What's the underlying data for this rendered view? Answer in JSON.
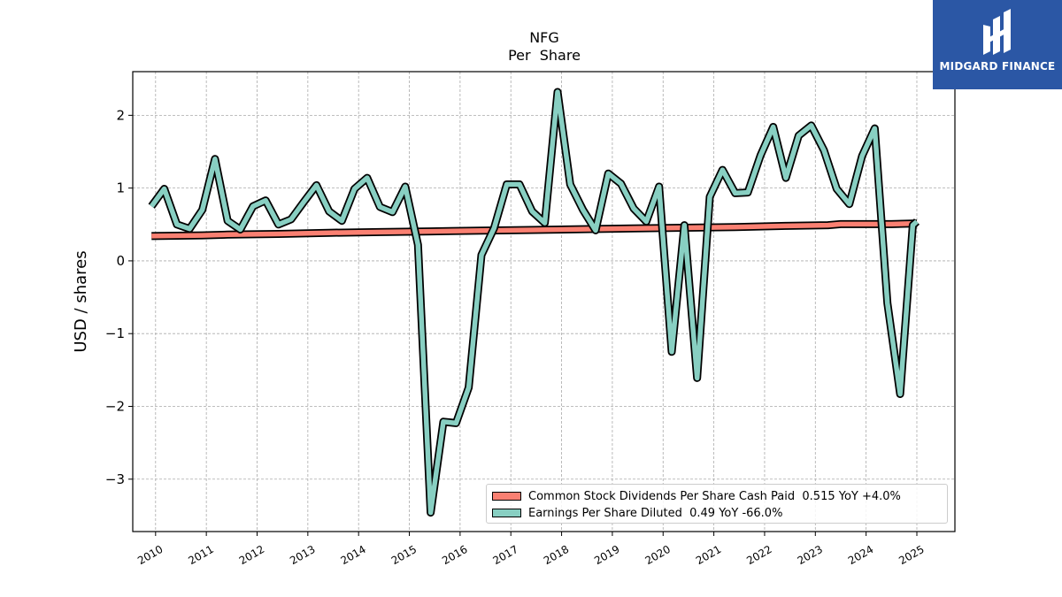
{
  "chart_data": {
    "type": "line",
    "title": "NFG",
    "subtitle": "Per  Share",
    "xlabel": "",
    "ylabel": "USD / shares",
    "xlim": [
      2009.55,
      2025.75
    ],
    "ylim": [
      -3.72,
      2.6
    ],
    "x_ticks": [
      "2010",
      "2011",
      "2012",
      "2013",
      "2014",
      "2015",
      "2016",
      "2017",
      "2018",
      "2019",
      "2020",
      "2021",
      "2022",
      "2023",
      "2024",
      "2025"
    ],
    "y_ticks": [
      -3,
      -2,
      -1,
      0,
      1,
      2
    ],
    "y_tick_labels": [
      "−3",
      "−2",
      "−1",
      "0",
      "1",
      "2"
    ],
    "grid": true,
    "legend_position": "lower-right",
    "series": [
      {
        "name": "Common Stock Dividends Per Share Cash Paid",
        "legend_label": "Common Stock Dividends Per Share Cash Paid  0.515 YoY +4.0%",
        "color": "#fa8072",
        "x": [
          2009.92,
          2010.92,
          2011.42,
          2012.42,
          2013.42,
          2014.42,
          2015.42,
          2016.42,
          2017.42,
          2018.42,
          2019.42,
          2020.42,
          2021.42,
          2022.42,
          2023.25,
          2023.5,
          2024.5,
          2025.0
        ],
        "values": [
          0.34,
          0.35,
          0.36,
          0.37,
          0.385,
          0.395,
          0.405,
          0.415,
          0.425,
          0.435,
          0.445,
          0.455,
          0.465,
          0.48,
          0.49,
          0.505,
          0.505,
          0.515
        ]
      },
      {
        "name": "Earnings Per Share Diluted",
        "legend_label": "Earnings Per Share Diluted  0.49 YoY -66.0%",
        "color": "#88cfc2",
        "x": [
          2009.92,
          2010.17,
          2010.42,
          2010.67,
          2010.92,
          2011.17,
          2011.42,
          2011.67,
          2011.92,
          2012.17,
          2012.42,
          2012.67,
          2012.92,
          2013.17,
          2013.42,
          2013.67,
          2013.92,
          2014.17,
          2014.42,
          2014.67,
          2014.92,
          2015.17,
          2015.42,
          2015.67,
          2015.92,
          2016.17,
          2016.42,
          2016.67,
          2016.92,
          2017.17,
          2017.42,
          2017.67,
          2017.92,
          2018.17,
          2018.42,
          2018.67,
          2018.92,
          2019.17,
          2019.42,
          2019.67,
          2019.92,
          2020.17,
          2020.42,
          2020.67,
          2020.92,
          2021.17,
          2021.42,
          2021.67,
          2021.92,
          2022.17,
          2022.42,
          2022.67,
          2022.92,
          2023.17,
          2023.42,
          2023.67,
          2023.92,
          2024.17,
          2024.42,
          2024.67,
          2024.92,
          2025.0
        ],
        "values": [
          0.75,
          0.99,
          0.5,
          0.44,
          0.7,
          1.4,
          0.55,
          0.43,
          0.75,
          0.83,
          0.5,
          0.57,
          0.81,
          1.04,
          0.68,
          0.55,
          0.99,
          1.14,
          0.74,
          0.67,
          1.02,
          0.22,
          -3.46,
          -2.21,
          -2.23,
          -1.74,
          0.08,
          0.45,
          1.05,
          1.05,
          0.68,
          0.52,
          2.32,
          1.05,
          0.7,
          0.42,
          1.2,
          1.06,
          0.72,
          0.54,
          1.02,
          -1.25,
          0.49,
          -1.61,
          0.88,
          1.25,
          0.93,
          0.94,
          1.45,
          1.84,
          1.14,
          1.72,
          1.86,
          1.52,
          0.99,
          0.78,
          1.44,
          1.82,
          -0.58,
          -1.83,
          0.49,
          0.54
        ]
      }
    ]
  },
  "brand": {
    "name": "MIDGARD FINANCE",
    "background": "#2b57a5"
  }
}
